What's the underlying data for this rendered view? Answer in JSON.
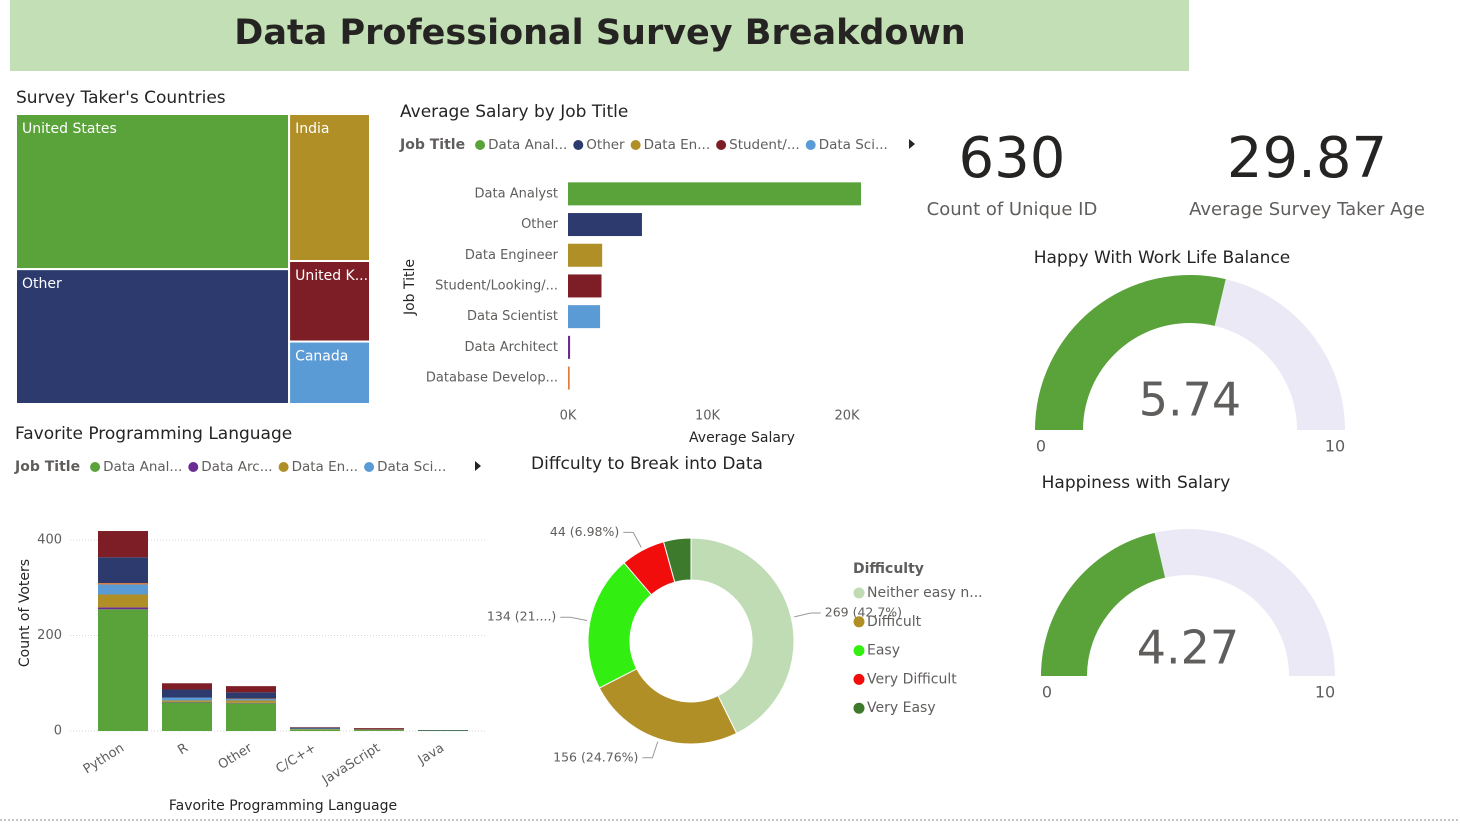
{
  "header": {
    "title": "Data Professional Survey Breakdown"
  },
  "chart_data": [
    {
      "type": "treemap",
      "title": "Survey Taker's Countries",
      "categories": [
        "United States",
        "Other",
        "India",
        "United K...",
        "Canada"
      ],
      "values": [
        260,
        226,
        73,
        40,
        31
      ],
      "colors": [
        "#5aa33a",
        "#2d3a6e",
        "#b08f26",
        "#7d1d26",
        "#5b9bd5"
      ]
    },
    {
      "type": "bar",
      "orientation": "horizontal",
      "title": "Average Salary by Job Title",
      "legend": {
        "title": "Job Title",
        "items": [
          {
            "name": "Data Anal...",
            "color": "#5aa33a"
          },
          {
            "name": "Other",
            "color": "#2d3a6e"
          },
          {
            "name": "Data En...",
            "color": "#b08f26"
          },
          {
            "name": "Student/...",
            "color": "#7d1d26"
          },
          {
            "name": "Data Sci...",
            "color": "#5b9bd5"
          }
        ]
      },
      "categories": [
        "Data Analyst",
        "Other",
        "Data Engineer",
        "Student/Looking/...",
        "Data Scientist",
        "Data Architect",
        "Database Develop..."
      ],
      "values": [
        21000,
        5300,
        2450,
        2400,
        2300,
        150,
        120
      ],
      "colors": [
        "#5aa33a",
        "#2d3a6e",
        "#b08f26",
        "#7d1d26",
        "#5b9bd5",
        "#6b2c91",
        "#e07b39"
      ],
      "xlim": [
        0,
        21500
      ],
      "xticks": [
        {
          "value": 0,
          "label": "0K"
        },
        {
          "value": 10000,
          "label": "10K"
        },
        {
          "value": 20000,
          "label": "20K"
        }
      ],
      "xlabel": "Average Salary",
      "ylabel": "Job Title"
    },
    {
      "type": "stacked_bar",
      "title": "Favorite Programming Language",
      "legend_title": "Job Title",
      "categories": [
        "Python",
        "R",
        "Other",
        "C/C++",
        "JavaScript",
        "Java"
      ],
      "series": [
        {
          "name": "Data Anal...",
          "color": "#5aa33a",
          "values": [
            255,
            60,
            58,
            3,
            2,
            1
          ]
        },
        {
          "name": "Data Arc...",
          "color": "#6b2c91",
          "values": [
            4,
            1,
            1,
            0,
            0,
            0
          ]
        },
        {
          "name": "Data En...",
          "color": "#b08f26",
          "values": [
            27,
            3,
            5,
            1,
            1,
            0
          ]
        },
        {
          "name": "Data Sci...",
          "color": "#5b9bd5",
          "values": [
            21,
            6,
            3,
            1,
            0,
            0
          ]
        },
        {
          "name": null,
          "color": "#e07b39",
          "values": [
            3,
            0,
            1,
            0,
            0,
            0
          ]
        },
        {
          "name": null,
          "color": "#2d3a6e",
          "values": [
            54,
            17,
            13,
            2,
            1,
            1
          ]
        },
        {
          "name": null,
          "color": "#7d1d26",
          "values": [
            55,
            13,
            13,
            1,
            2,
            0
          ]
        }
      ],
      "ylim": [
        0,
        440
      ],
      "yticks": [
        0,
        200,
        400
      ],
      "grid": true,
      "xlabel": "Favorite Programming Language",
      "ylabel": "Count of Voters"
    },
    {
      "type": "donut",
      "title": "Diffculty to Break into Data",
      "legend_title": "Difficulty",
      "categories": [
        "Neither easy n...",
        "Difficult",
        "Easy",
        "Very Difficult",
        "Very Easy"
      ],
      "values": [
        269,
        156,
        134,
        44,
        27
      ],
      "value_labels": [
        "269 (42.7%)",
        "156 (24.76%)",
        "134 (21....)",
        "44 (6.98%)",
        null
      ],
      "colors": [
        "#c0dcb4",
        "#b08f26",
        "#33ee11",
        "#f20d0d",
        "#3d7a2c"
      ]
    },
    {
      "type": "card",
      "value": 630,
      "label": "Count of Unique ID"
    },
    {
      "type": "card",
      "value": 29.87,
      "label": "Average Survey Taker Age"
    },
    {
      "type": "gauge",
      "title": "Happy With Work Life Balance",
      "value": 5.74,
      "min": 0,
      "max": 10,
      "color": "#5aa33a",
      "track": "#ebe9f5"
    },
    {
      "type": "gauge",
      "title": "Happiness with Salary",
      "value": 4.27,
      "min": 0,
      "max": 10,
      "color": "#5aa33a",
      "track": "#ebe9f5"
    }
  ]
}
